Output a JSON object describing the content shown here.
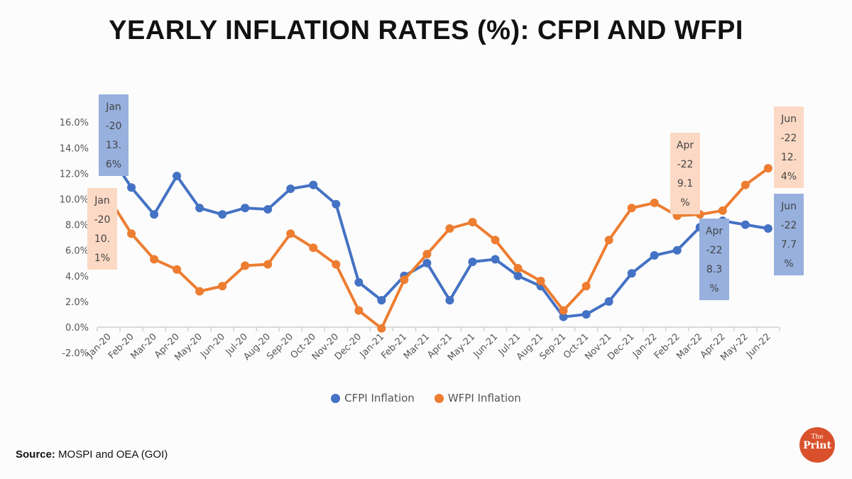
{
  "chart_data": {
    "type": "line",
    "title": "YEARLY INFLATION RATES (%): CFPI AND WFPI",
    "xlabel": "",
    "ylabel": "",
    "ylim": [
      -2,
      16
    ],
    "yticks": [
      "16.0%",
      "14.0%",
      "12.0%",
      "10.0%",
      "8.0%",
      "6.0%",
      "4.0%",
      "2.0%",
      "0.0%",
      "-2.0%"
    ],
    "ytick_values": [
      16,
      14,
      12,
      10,
      8,
      6,
      4,
      2,
      0,
      -2
    ],
    "categories": [
      "Jan-20",
      "Feb-20",
      "Mar-20",
      "Apr-20",
      "May-20",
      "Jun-20",
      "Jul-20",
      "Aug-20",
      "Sep-20",
      "Oct-20",
      "Nov-20",
      "Dec-20",
      "Jan-21",
      "Feb-21",
      "Mar-21",
      "Apr-21",
      "May-21",
      "Jun-21",
      "Jul-21",
      "Aug-21",
      "Sep-21",
      "Oct-21",
      "Nov-21",
      "Dec-21",
      "Jan-22",
      "Feb-22",
      "Mar-22",
      "Apr-22",
      "May-22",
      "Jun-22"
    ],
    "series": [
      {
        "name": "CFPI Inflation",
        "color": "#4472C4",
        "values": [
          13.6,
          10.9,
          8.8,
          11.8,
          9.3,
          8.8,
          9.3,
          9.2,
          10.8,
          11.1,
          9.6,
          3.5,
          2.1,
          4.0,
          5.0,
          2.1,
          5.1,
          5.3,
          4.0,
          3.2,
          0.8,
          1.0,
          2.0,
          4.2,
          5.6,
          6.0,
          7.8,
          8.3,
          8.0,
          7.7
        ]
      },
      {
        "name": "WFPI Inflation",
        "color": "#ED7D31",
        "values": [
          10.1,
          7.3,
          5.3,
          4.5,
          2.8,
          3.2,
          4.8,
          4.9,
          7.3,
          6.2,
          4.9,
          1.3,
          -0.1,
          3.7,
          5.7,
          7.7,
          8.2,
          6.8,
          4.6,
          3.6,
          1.3,
          3.2,
          6.8,
          9.3,
          9.7,
          8.7,
          8.8,
          9.1,
          11.1,
          12.4
        ]
      }
    ],
    "annotations": [
      {
        "series": 0,
        "index": 0,
        "lines": [
          "Jan",
          "-20",
          "13.",
          "6%"
        ]
      },
      {
        "series": 1,
        "index": 0,
        "lines": [
          "Jan",
          "-20",
          "10.",
          "1%"
        ]
      },
      {
        "series": 1,
        "index": 27,
        "lines": [
          "Apr",
          "-22",
          "9.1",
          "%"
        ]
      },
      {
        "series": 0,
        "index": 27,
        "lines": [
          "Apr",
          "-22",
          "8.3",
          "%"
        ]
      },
      {
        "series": 1,
        "index": 29,
        "lines": [
          "Jun",
          "-22",
          "12.",
          "4%"
        ]
      },
      {
        "series": 0,
        "index": 29,
        "lines": [
          "Jun",
          "-22",
          "7.7",
          "%"
        ]
      }
    ],
    "grid": false,
    "legend": "bottom"
  },
  "legend": {
    "cfpi": "CFPI Inflation",
    "wfpi": "WFPI Inflation"
  },
  "source": {
    "label": "Source:",
    "text": " MOSPI and OEA (GOI)"
  },
  "logo": {
    "text": "The Print"
  }
}
